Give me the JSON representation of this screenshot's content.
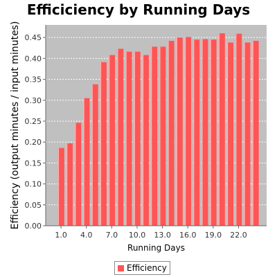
{
  "chart_data": {
    "type": "bar",
    "title": "Efficiciency by Running Days",
    "xlabel": "Running Days",
    "ylabel": "Efficiency (output minutes / input minutes)",
    "categories": [
      "1.0",
      "2.0",
      "3.0",
      "4.0",
      "5.0",
      "6.0",
      "7.0",
      "8.0",
      "9.0",
      "10.0",
      "11.0",
      "12.0",
      "13.0",
      "14.0",
      "15.0",
      "16.0",
      "17.0",
      "18.0",
      "19.0",
      "20.0",
      "21.0",
      "22.0",
      "23.0",
      "24.0"
    ],
    "x_tick_labels": [
      "1.0",
      "4.0",
      "7.0",
      "10.0",
      "13.0",
      "16.0",
      "19.0",
      "22.0"
    ],
    "x_tick_indices": [
      0,
      3,
      6,
      9,
      12,
      15,
      18,
      21
    ],
    "series": [
      {
        "name": "Efficiency",
        "color": "#ff5555",
        "values": [
          0.186,
          0.197,
          0.246,
          0.305,
          0.338,
          0.391,
          0.408,
          0.423,
          0.416,
          0.416,
          0.408,
          0.428,
          0.428,
          0.442,
          0.45,
          0.451,
          0.445,
          0.446,
          0.445,
          0.46,
          0.438,
          0.459,
          0.438,
          0.442
        ]
      }
    ],
    "ylim": [
      0,
      0.48
    ],
    "y_ticks": [
      "0.00",
      "0.05",
      "0.10",
      "0.15",
      "0.20",
      "0.25",
      "0.30",
      "0.35",
      "0.40",
      "0.45"
    ],
    "grid": true,
    "plot_background": "#c0c0c0",
    "legend_position": "bottom"
  }
}
